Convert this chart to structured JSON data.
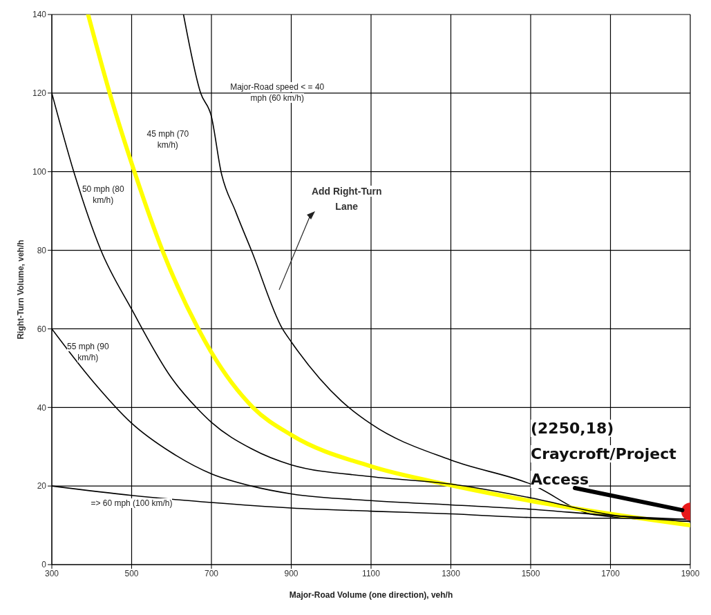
{
  "chart_data": {
    "type": "line",
    "xlabel": "Major-Road Volume (one direction), veh/h",
    "ylabel": "Right-Turn Volume, veh/h",
    "xlim": [
      300,
      1900
    ],
    "ylim": [
      0,
      140
    ],
    "xticks": [
      300,
      500,
      700,
      900,
      1100,
      1300,
      1500,
      1700,
      1900
    ],
    "yticks": [
      0,
      20,
      40,
      60,
      80,
      100,
      120,
      140
    ],
    "grid": true,
    "marker": "none",
    "line_style": "solid",
    "series": [
      {
        "name": "Major-Road speed < = 40 mph (60 km/h)",
        "color": "#000000",
        "x": [
          630,
          673,
          700,
          724,
          760,
          800,
          878,
          900,
          1026,
          1100,
          1300,
          1500,
          1659,
          1900
        ],
        "values": [
          140,
          120,
          114,
          100,
          90,
          80,
          60,
          56.7,
          41.6,
          35.8,
          26.6,
          20.5,
          12.7,
          11
        ]
      },
      {
        "name": "45 mph (70 km/h)",
        "color": "#ffff00",
        "x": [
          391,
          445,
          507,
          577,
          667,
          700,
          804,
          900,
          1100,
          1300,
          1500,
          1700,
          1900
        ],
        "values": [
          140,
          120,
          100,
          80,
          60,
          54,
          40,
          33,
          25,
          20.2,
          16.2,
          12.9,
          10
        ]
      },
      {
        "name": "50 mph (80 km/h)",
        "color": "#000000",
        "x": [
          300,
          355,
          423,
          500,
          600,
          662,
          700,
          800,
          900,
          1100,
          1300,
          1500,
          1700,
          1900
        ],
        "values": [
          120,
          100,
          80,
          65,
          47.5,
          40,
          36.2,
          29.5,
          25.4,
          22.4,
          20.5,
          17,
          12.7,
          11
        ]
      },
      {
        "name": "55 mph (90 km/h)",
        "color": "#000000",
        "x": [
          300,
          400,
          500,
          600,
          700,
          800,
          900,
          1100,
          1300,
          1500,
          1700,
          1900
        ],
        "values": [
          60,
          47,
          36,
          28.5,
          23.1,
          20,
          18,
          16.3,
          15.2,
          14.1,
          12.5,
          11.5
        ]
      },
      {
        "name": "=> 60 mph (100 km/h)",
        "color": "#000000",
        "x": [
          300,
          500,
          700,
          900,
          1100,
          1300,
          1500,
          1700,
          1900
        ],
        "values": [
          20,
          17.6,
          15.8,
          14.4,
          13.6,
          12.9,
          12,
          11.8,
          11.5
        ]
      },
      {
        "type": "scatter",
        "marker": "circle",
        "color": "#e8191a",
        "x": [
          1900
        ],
        "values": [
          13.5
        ]
      }
    ],
    "annotations": [
      "Add Right-Turn Lane",
      {
        "text": "(2250,18) Craycroft/Project Access",
        "x": 1900,
        "y": 13.5
      }
    ]
  }
}
